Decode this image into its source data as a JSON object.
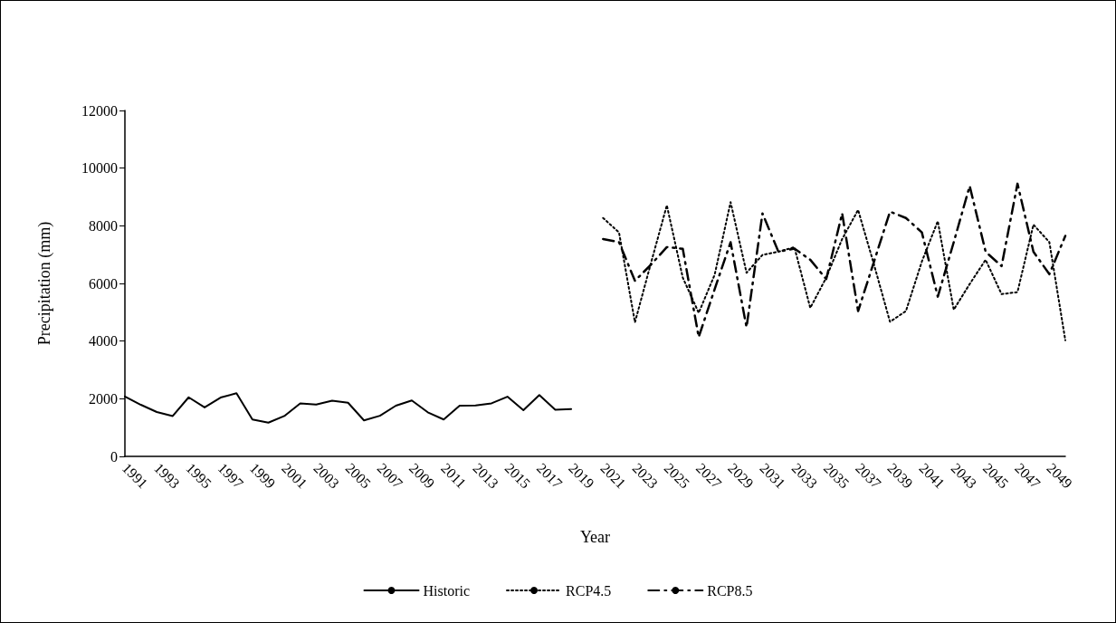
{
  "chart_data": {
    "type": "line",
    "xlabel": "Year",
    "ylabel": "Precipitation (mm)",
    "categories": [
      "1991",
      null,
      "1993",
      null,
      "1995",
      null,
      "1997",
      null,
      "1999",
      null,
      "2001",
      null,
      "2003",
      null,
      "2005",
      null,
      "2007",
      null,
      "2009",
      null,
      "2011",
      null,
      "2013",
      null,
      "2015",
      null,
      "2017",
      null,
      "2019",
      null,
      "2021",
      null,
      "2023",
      null,
      "2025",
      null,
      "2027",
      null,
      "2029",
      null,
      "2031",
      null,
      "2033",
      null,
      "2035",
      null,
      "2037",
      null,
      "2039",
      null,
      "2041",
      null,
      "2043",
      null,
      "2045",
      null,
      "2047",
      null,
      "2049",
      null
    ],
    "series": [
      {
        "name": "Historic",
        "color": "#000000",
        "line_style": "solid",
        "values": [
          2080,
          1790,
          1540,
          1400,
          2050,
          1700,
          2040,
          2190,
          1280,
          1170,
          1400,
          1840,
          1800,
          1930,
          1860,
          1250,
          1410,
          1760,
          1940,
          1530,
          1280,
          1760,
          1770,
          1840,
          2070,
          1600,
          2130,
          1620,
          1640,
          null,
          null,
          null,
          null,
          null,
          null,
          null,
          null,
          null,
          null,
          null,
          null,
          null,
          null,
          null,
          null,
          null,
          null,
          null,
          null,
          null,
          null,
          null,
          null,
          null,
          null,
          null,
          null,
          null,
          null,
          null
        ]
      },
      {
        "name": "RCP4.5",
        "color": "#000000",
        "line_style": "dotted",
        "values": [
          null,
          null,
          null,
          null,
          null,
          null,
          null,
          null,
          null,
          null,
          null,
          null,
          null,
          null,
          null,
          null,
          null,
          null,
          null,
          null,
          null,
          null,
          null,
          null,
          null,
          null,
          null,
          null,
          null,
          null,
          8270,
          7770,
          4650,
          6700,
          8710,
          6200,
          4980,
          6300,
          8820,
          6370,
          6990,
          7100,
          7260,
          5150,
          6200,
          7540,
          8550,
          6650,
          4670,
          5040,
          6760,
          8160,
          5090,
          5980,
          6820,
          5630,
          5700,
          8040,
          7430,
          4030
        ]
      },
      {
        "name": "RCP8.5",
        "color": "#000000",
        "line_style": "dashed",
        "values": [
          null,
          null,
          null,
          null,
          null,
          null,
          null,
          null,
          null,
          null,
          null,
          null,
          null,
          null,
          null,
          null,
          null,
          null,
          null,
          null,
          null,
          null,
          null,
          null,
          null,
          null,
          null,
          null,
          null,
          null,
          7540,
          7430,
          6090,
          6650,
          7260,
          7200,
          4140,
          5800,
          7430,
          4480,
          8430,
          7100,
          7210,
          6820,
          6150,
          8430,
          5040,
          6760,
          8490,
          8270,
          7770,
          5540,
          7430,
          9380,
          7100,
          6600,
          9460,
          7100,
          6320,
          7650
        ]
      }
    ],
    "ylim": [
      0,
      12000
    ],
    "yticks": [
      0,
      2000,
      4000,
      6000,
      8000,
      10000,
      12000
    ],
    "grid": false,
    "legend": "bottom",
    "marker": "none"
  }
}
